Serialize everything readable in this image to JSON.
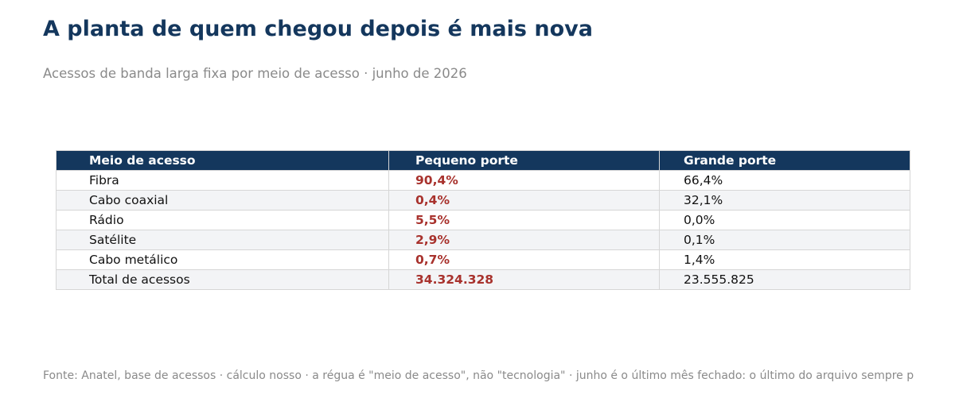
{
  "title": "A planta de quem chegou depois é mais nova",
  "subtitle": "Acessos de banda larga fixa por meio de acesso · junho de 2026",
  "footer": "Fonte: Anatel, base de acessos · cálculo nosso · a régua é \"meio de acesso\", não \"tecnologia\" · junho é o último mês fechado: o último do arquivo sempre p",
  "colors": {
    "header_bg": "#14375d",
    "title": "#14375d",
    "accent": "#a8322d",
    "muted": "#8a8a8a",
    "stripe": "#f3f4f6"
  },
  "chart_data": {
    "type": "table",
    "columns": [
      "Meio de acesso",
      "Pequeno porte",
      "Grande porte"
    ],
    "rows": [
      [
        "Fibra",
        "90,4%",
        "66,4%"
      ],
      [
        "Cabo coaxial",
        "0,4%",
        "32,1%"
      ],
      [
        "Rádio",
        "5,5%",
        "0,0%"
      ],
      [
        "Satélite",
        "2,9%",
        "0,1%"
      ],
      [
        "Cabo metálico",
        "0,7%",
        "1,4%"
      ],
      [
        "Total de acessos",
        "34.324.328",
        "23.555.825"
      ]
    ],
    "highlight_column": "Pequeno porte"
  }
}
